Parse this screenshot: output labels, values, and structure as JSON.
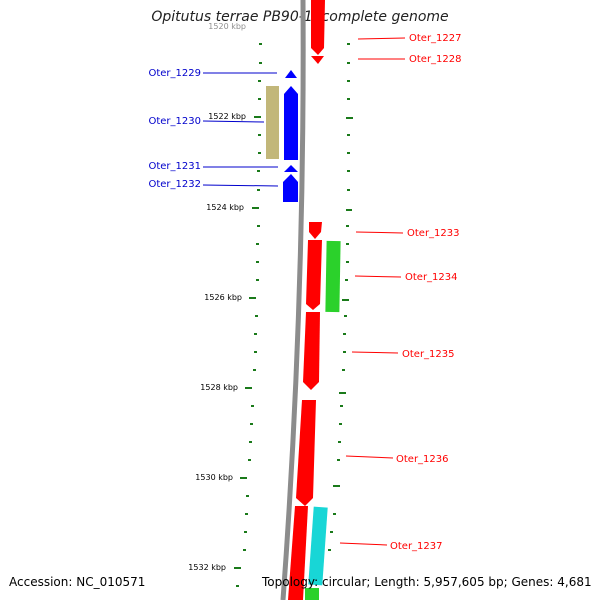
{
  "title": "Opitutus terrae PB90-1, complete genome",
  "footer": {
    "accession": "Accession: NC_010571",
    "summary": "Topology: circular; Length: 5,957,605 bp; Genes: 4,681"
  },
  "colors": {
    "backbone": "#8c8c8c",
    "tick": "#1a7a1a",
    "reverse_strand": "#0000ff",
    "forward_strand": "#ff0000",
    "khaki_feature": "#c2b77a",
    "green_feature": "#2bd12b",
    "cyan_feature": "#18d6d6",
    "label_red": "#ff0000",
    "label_blue": "#0000cc"
  },
  "scale_labels": [
    "1520 kbp",
    "1522 kbp",
    "1524 kbp",
    "1526 kbp",
    "1528 kbp",
    "1530 kbp",
    "1532 kbp"
  ],
  "genes": {
    "left": [
      "Oter_1229",
      "Oter_1230",
      "Oter_1231",
      "Oter_1232"
    ],
    "right": [
      "Oter_1227",
      "Oter_1228",
      "Oter_1233",
      "Oter_1234",
      "Oter_1235",
      "Oter_1236",
      "Oter_1237"
    ]
  }
}
